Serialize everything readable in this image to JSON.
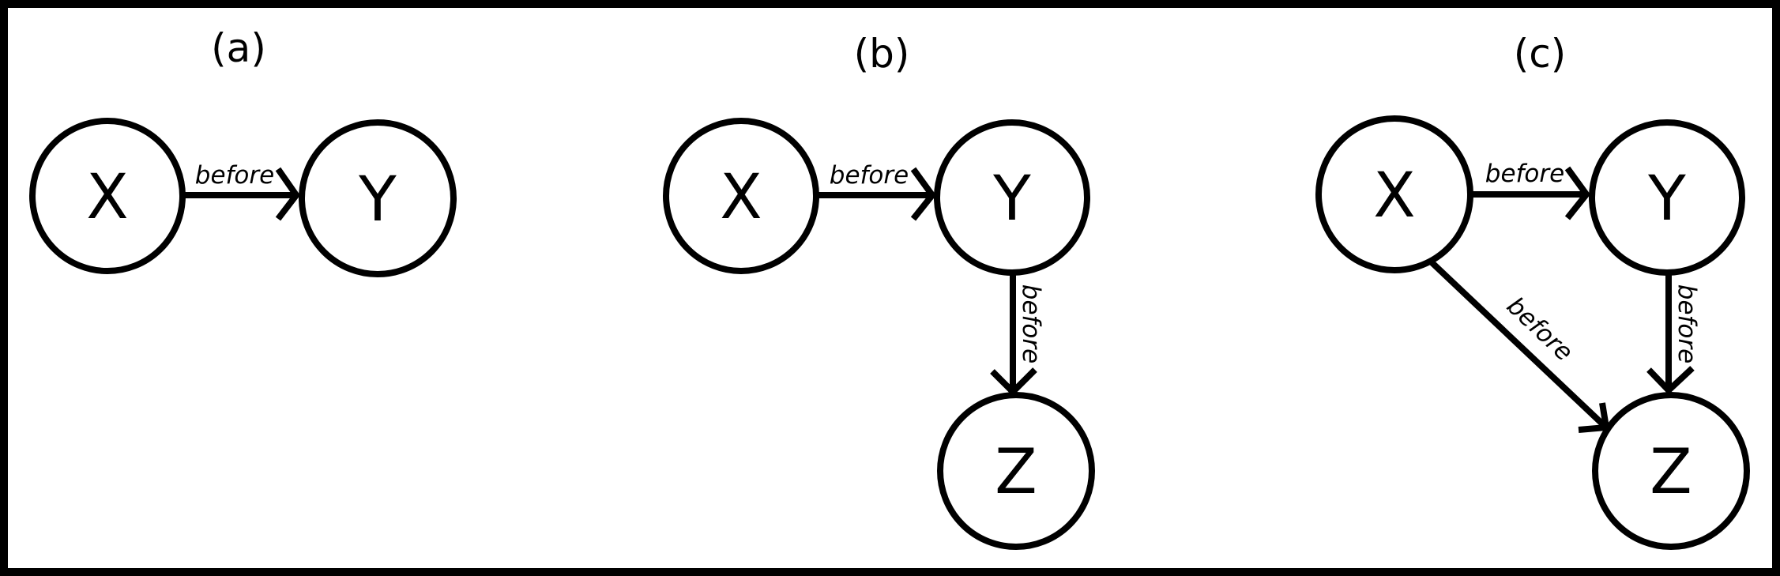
{
  "panels": [
    {
      "label": "(a)",
      "nodes": {
        "X": "X",
        "Y": "Y"
      },
      "edges": [
        {
          "from": "X",
          "to": "Y",
          "label": "before"
        }
      ]
    },
    {
      "label": "(b)",
      "nodes": {
        "X": "X",
        "Y": "Y",
        "Z": "Z"
      },
      "edges": [
        {
          "from": "X",
          "to": "Y",
          "label": "before"
        },
        {
          "from": "Y",
          "to": "Z",
          "label": "before"
        }
      ]
    },
    {
      "label": "(c)",
      "nodes": {
        "X": "X",
        "Y": "Y",
        "Z": "Z"
      },
      "edges": [
        {
          "from": "X",
          "to": "Y",
          "label": "before"
        },
        {
          "from": "Y",
          "to": "Z",
          "label": "before"
        },
        {
          "from": "X",
          "to": "Z",
          "label": "before"
        }
      ]
    }
  ],
  "colors": {
    "stroke": "#000000",
    "background": "#ffffff"
  }
}
